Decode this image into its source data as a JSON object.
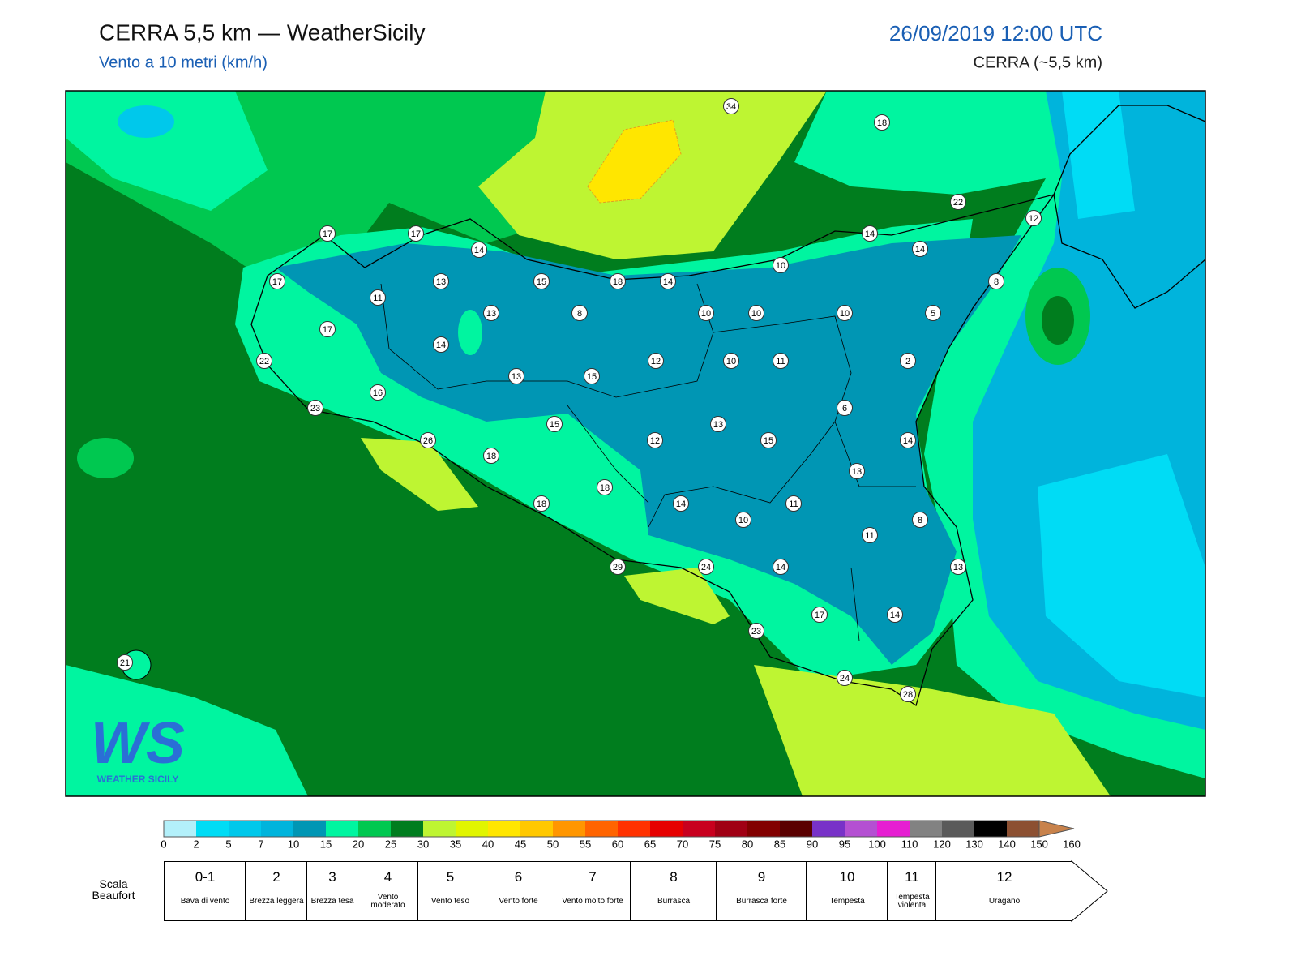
{
  "header": {
    "title": "CERRA 5,5 km — WeatherSicily",
    "subtitle": "Vento a 10 metri (km/h)",
    "date": "26/09/2019 12:00 UTC",
    "model": "CERRA (~5,5 km)"
  },
  "stations": [
    34,
    18,
    22,
    12,
    17,
    17,
    14,
    14,
    14,
    10,
    17,
    13,
    15,
    18,
    14,
    8,
    11,
    13,
    8,
    10,
    10,
    10,
    5,
    17,
    14,
    12,
    10,
    11,
    2,
    22,
    13,
    15,
    16,
    23,
    6,
    15,
    13,
    26,
    12,
    15,
    14,
    18,
    13,
    18,
    18,
    14,
    11,
    10,
    8,
    11,
    29,
    24,
    14,
    13,
    17,
    14,
    23,
    21,
    24,
    28
  ],
  "colorbar": {
    "ticks": [
      0,
      2,
      5,
      7,
      10,
      15,
      20,
      25,
      30,
      35,
      40,
      45,
      50,
      55,
      60,
      65,
      70,
      75,
      80,
      85,
      90,
      95,
      100,
      110,
      120,
      130,
      140,
      150,
      160
    ],
    "colors": [
      "#b3f0fa",
      "#00dcf5",
      "#00c8eb",
      "#00b4dc",
      "#0096b4",
      "#00f5a0",
      "#00c850",
      "#007d1e",
      "#bef532",
      "#e1f500",
      "#ffe600",
      "#ffc800",
      "#ff9600",
      "#ff6400",
      "#ff3200",
      "#e60000",
      "#c8001e",
      "#a00014",
      "#820000",
      "#5a0000",
      "#7832c8",
      "#b450d2",
      "#e61ed2",
      "#828282",
      "#5a5a5a",
      "#000000",
      "#8c5032",
      "#c8824b"
    ]
  },
  "beaufort": {
    "title": "Scala Beaufort",
    "levels": [
      {
        "force": "0-1",
        "label": "Bava di vento"
      },
      {
        "force": "2",
        "label": "Brezza leggera"
      },
      {
        "force": "3",
        "label": "Brezza tesa"
      },
      {
        "force": "4",
        "label": "Vento moderato"
      },
      {
        "force": "5",
        "label": "Vento teso"
      },
      {
        "force": "6",
        "label": "Vento forte"
      },
      {
        "force": "7",
        "label": "Vento molto forte"
      },
      {
        "force": "8",
        "label": "Burrasca"
      },
      {
        "force": "9",
        "label": "Burrasca forte"
      },
      {
        "force": "10",
        "label": "Tempesta"
      },
      {
        "force": "11",
        "label": "Tempesta violenta"
      },
      {
        "force": "12",
        "label": "Uragano"
      }
    ]
  },
  "logo": {
    "mark": "WS",
    "name": "WEATHER SICILY"
  }
}
